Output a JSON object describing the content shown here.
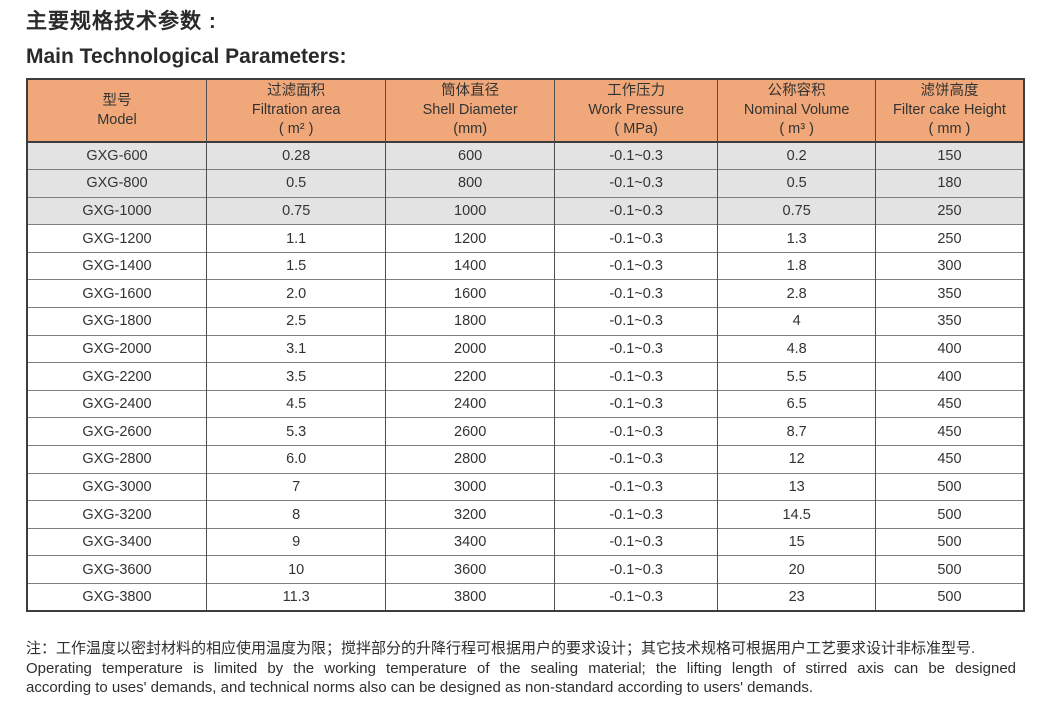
{
  "page": {
    "title_zh": "主要规格技术参数 :",
    "title_en": "Main Technological Parameters:"
  },
  "table": {
    "columns": [
      {
        "zh": "型号",
        "en": "Model",
        "unit": ""
      },
      {
        "zh": "过滤面积",
        "en": "Filtration area",
        "unit": "( m² )"
      },
      {
        "zh": "筒体直径",
        "en": "Shell Diameter",
        "unit": "(mm)"
      },
      {
        "zh": "工作压力",
        "en": "Work Pressure",
        "unit": "( MPa)"
      },
      {
        "zh": "公称容积",
        "en": "Nominal Volume",
        "unit": "( m³ )"
      },
      {
        "zh": "滤饼高度",
        "en": "Filter cake Height",
        "unit": "( mm )"
      }
    ],
    "shaded_row_count": 3,
    "rows": [
      [
        "GXG-600",
        "0.28",
        "600",
        "-0.1~0.3",
        "0.2",
        "150"
      ],
      [
        "GXG-800",
        "0.5",
        "800",
        "-0.1~0.3",
        "0.5",
        "180"
      ],
      [
        "GXG-1000",
        "0.75",
        "1000",
        "-0.1~0.3",
        "0.75",
        "250"
      ],
      [
        "GXG-1200",
        "1.1",
        "1200",
        "-0.1~0.3",
        "1.3",
        "250"
      ],
      [
        "GXG-1400",
        "1.5",
        "1400",
        "-0.1~0.3",
        "1.8",
        "300"
      ],
      [
        "GXG-1600",
        "2.0",
        "1600",
        "-0.1~0.3",
        "2.8",
        "350"
      ],
      [
        "GXG-1800",
        "2.5",
        "1800",
        "-0.1~0.3",
        "4",
        "350"
      ],
      [
        "GXG-2000",
        "3.1",
        "2000",
        "-0.1~0.3",
        "4.8",
        "400"
      ],
      [
        "GXG-2200",
        "3.5",
        "2200",
        "-0.1~0.3",
        "5.5",
        "400"
      ],
      [
        "GXG-2400",
        "4.5",
        "2400",
        "-0.1~0.3",
        "6.5",
        "450"
      ],
      [
        "GXG-2600",
        "5.3",
        "2600",
        "-0.1~0.3",
        "8.7",
        "450"
      ],
      [
        "GXG-2800",
        "6.0",
        "2800",
        "-0.1~0.3",
        "12",
        "450"
      ],
      [
        "GXG-3000",
        "7",
        "3000",
        "-0.1~0.3",
        "13",
        "500"
      ],
      [
        "GXG-3200",
        "8",
        "3200",
        "-0.1~0.3",
        "14.5",
        "500"
      ],
      [
        "GXG-3400",
        "9",
        "3400",
        "-0.1~0.3",
        "15",
        "500"
      ],
      [
        "GXG-3600",
        "10",
        "3600",
        "-0.1~0.3",
        "20",
        "500"
      ],
      [
        "GXG-3800",
        "11.3",
        "3800",
        "-0.1~0.3",
        "23",
        "500"
      ]
    ]
  },
  "notes": {
    "zh": "注：工作温度以密封材料的相应使用温度为限；搅拌部分的升降行程可根据用户的要求设计；其它技术规格可根据用户工艺要求设计非标准型号.",
    "en_line1": "Operating temperature is limited by the working temperature of the sealing material; the lifting length of stirred axis can be designed",
    "en_line2": "according to uses' demands, and technical norms also can be designed as non-standard according to users' demands."
  },
  "colors": {
    "header_bg": "#f0a87a",
    "shaded_row_bg": "#e3e3e3",
    "border_dark": "#3d3d3d",
    "border_mid": "#4f4f4f",
    "border_light": "#7f7f7f"
  }
}
